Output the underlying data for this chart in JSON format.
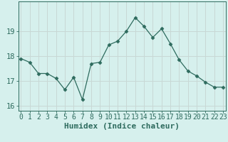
{
  "x": [
    0,
    1,
    2,
    3,
    4,
    5,
    6,
    7,
    8,
    9,
    10,
    11,
    12,
    13,
    14,
    15,
    16,
    17,
    18,
    19,
    20,
    21,
    22,
    23
  ],
  "y": [
    17.9,
    17.75,
    17.3,
    17.3,
    17.1,
    16.65,
    17.15,
    16.25,
    17.7,
    17.75,
    18.45,
    18.6,
    19.0,
    19.55,
    19.2,
    18.75,
    19.1,
    18.5,
    17.85,
    17.4,
    17.2,
    16.95,
    16.75,
    16.75
  ],
  "line_color": "#2e6b5e",
  "marker": "D",
  "marker_size": 2.5,
  "bg_color": "#d6f0ed",
  "grid_color": "#c8d8d5",
  "axis_color": "#2e6b5e",
  "xlabel": "Humidex (Indice chaleur)",
  "xlabel_fontsize": 8,
  "tick_fontsize": 7,
  "ylim": [
    15.8,
    20.2
  ],
  "yticks": [
    16,
    17,
    18,
    19
  ],
  "xticks": [
    0,
    1,
    2,
    3,
    4,
    5,
    6,
    7,
    8,
    9,
    10,
    11,
    12,
    13,
    14,
    15,
    16,
    17,
    18,
    19,
    20,
    21,
    22,
    23
  ]
}
